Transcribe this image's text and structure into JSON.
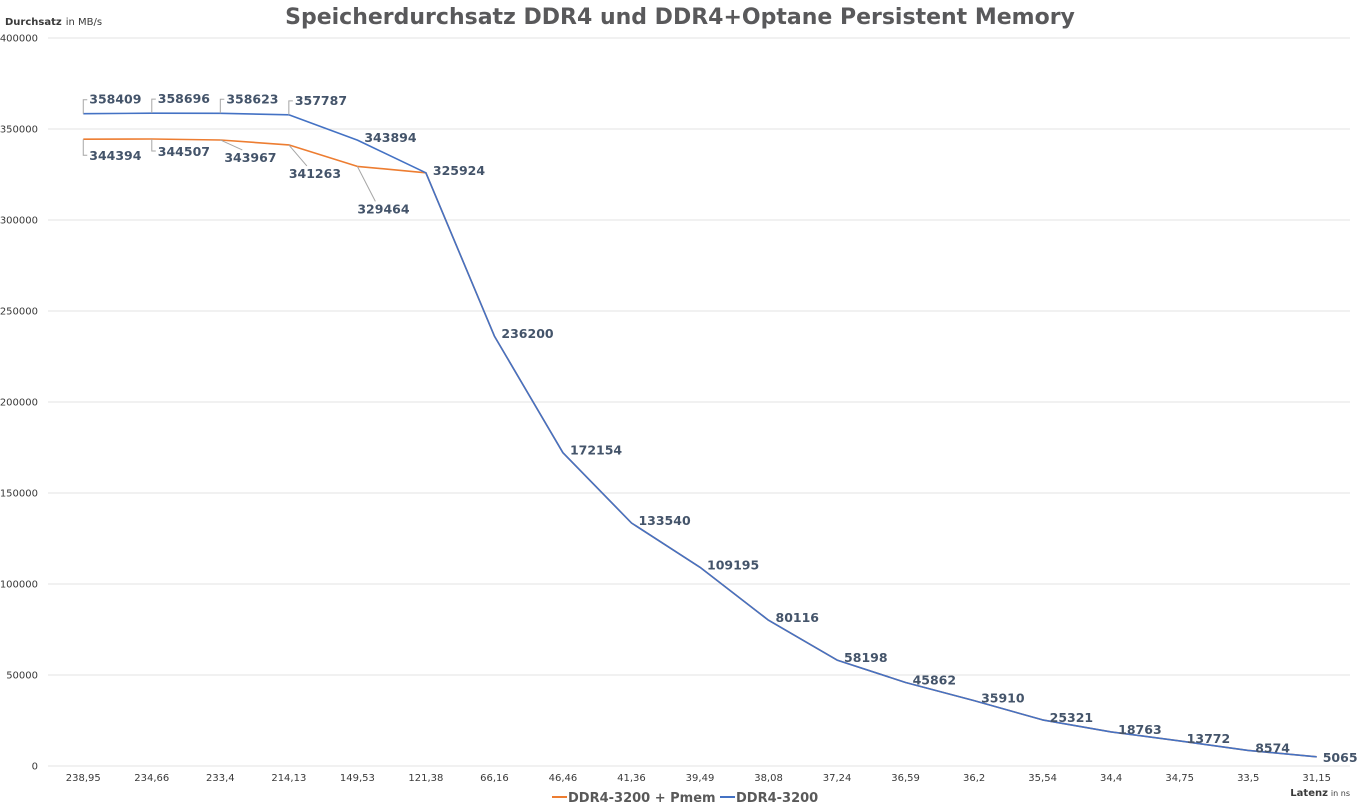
{
  "chart_data": {
    "type": "line",
    "title": "Speicherdurchsatz DDR4 und DDR4+Optane Persistent Memory",
    "ylabel": "Durchsatz",
    "ylabel_unit": "in MB/s",
    "xlabel": "Latenz",
    "xlabel_unit": "in ns",
    "ylim": [
      0,
      400000
    ],
    "yticks": [
      "0",
      "50000",
      "100000",
      "150000",
      "200000",
      "250000",
      "300000",
      "350000",
      "400000"
    ],
    "categories": [
      "238,95",
      "234,66",
      "233,4",
      "214,13",
      "149,53",
      "121,38",
      "66,16",
      "46,46",
      "41,36",
      "39,49",
      "38,08",
      "37,24",
      "36,59",
      "36,2",
      "35,54",
      "34,4",
      "34,75",
      "33,5",
      "31,15"
    ],
    "grid": true,
    "legend_position": "bottom",
    "series": [
      {
        "name": "DDR4-3200 + Pmem",
        "color": "#ed7d31",
        "values": [
          344394,
          344507,
          343967,
          341263,
          329464,
          325924,
          236200,
          172154,
          133540,
          109195,
          80116,
          58198,
          45862,
          35910,
          25321,
          18763,
          13772,
          8574,
          5065
        ],
        "labels": [
          "344394",
          "344507",
          "343967",
          "341263",
          "329464",
          null,
          null,
          null,
          null,
          null,
          null,
          null,
          null,
          null,
          null,
          null,
          null,
          null,
          null
        ]
      },
      {
        "name": "DDR4-3200",
        "color": "#4472c4",
        "values": [
          358409,
          358696,
          358623,
          357787,
          343894,
          325924,
          236200,
          172154,
          133540,
          109195,
          80116,
          58198,
          45862,
          35910,
          25321,
          18763,
          13772,
          8574,
          5065
        ],
        "labels": [
          "358409",
          "358696",
          "358623",
          "357787",
          "343894",
          "325924",
          "236200",
          "172154",
          "133540",
          "109195",
          "80116",
          "58198",
          "45862",
          "35910",
          "25321",
          "18763",
          "13772",
          "8574",
          "5065"
        ]
      }
    ]
  }
}
